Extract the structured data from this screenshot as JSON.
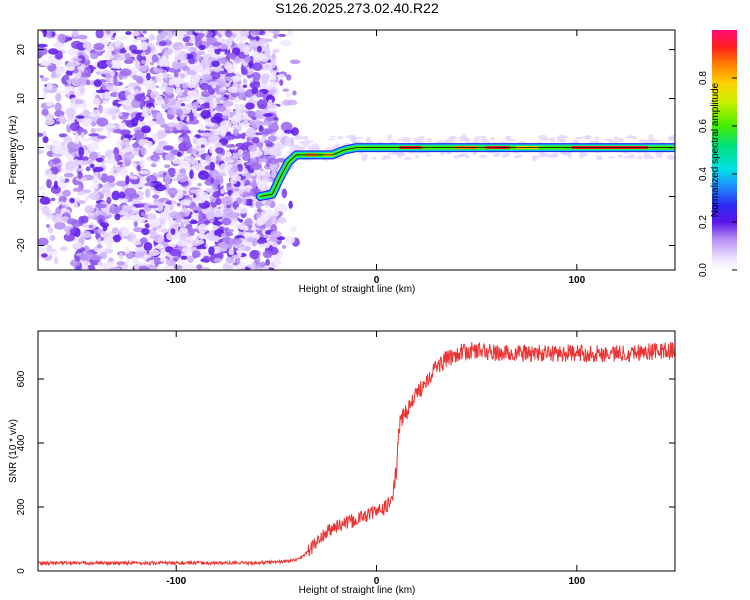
{
  "title": "S126.2025.273.02.40.R22",
  "chart_data": [
    {
      "type": "heatmap",
      "xlabel": "Height of straight line (km)",
      "ylabel": "Frequency (Hz)",
      "xlim": [
        -169,
        149
      ],
      "ylim": [
        -25,
        24
      ],
      "xticks": [
        -100,
        0,
        100
      ],
      "yticks": [
        -20,
        -10,
        0,
        10,
        20
      ],
      "colorbar": {
        "label": "Normalized spectral amplitude",
        "range": [
          0,
          1
        ],
        "ticks": [
          0.0,
          0.2,
          0.4,
          0.6,
          0.8
        ]
      },
      "ridge": {
        "x": [
          -58,
          -52,
          -48,
          -44,
          -40,
          -34,
          -28,
          -22,
          -16,
          -10,
          0,
          20,
          60,
          100,
          149
        ],
        "y": [
          -10,
          -9.5,
          -6,
          -3,
          -1.5,
          -1.5,
          -1.5,
          -1.5,
          -0.5,
          0,
          0,
          0,
          0,
          0,
          0
        ]
      },
      "noise_cutoff_x": -50
    },
    {
      "type": "line",
      "xlabel": "Height of straight line (km)",
      "ylabel": "SNR (10 * v/v)",
      "xlim": [
        -169,
        149
      ],
      "ylim": [
        0,
        750
      ],
      "xticks": [
        -100,
        0,
        100
      ],
      "yticks": [
        0,
        200,
        400,
        600
      ],
      "color": "#ee3333",
      "series": [
        {
          "x": [
            -169,
            -140,
            -100,
            -60,
            -45,
            -40,
            -35,
            -30,
            -25,
            -20,
            -15,
            -10,
            -5,
            0,
            5,
            8,
            10,
            11,
            12,
            15,
            20,
            25,
            30,
            40,
            50,
            60,
            80,
            100,
            120,
            149
          ],
          "values": [
            25,
            25,
            25,
            25,
            30,
            35,
            55,
            90,
            120,
            140,
            150,
            160,
            175,
            185,
            200,
            230,
            320,
            430,
            470,
            500,
            550,
            600,
            640,
            680,
            690,
            680,
            680,
            680,
            680,
            690
          ]
        }
      ]
    }
  ]
}
